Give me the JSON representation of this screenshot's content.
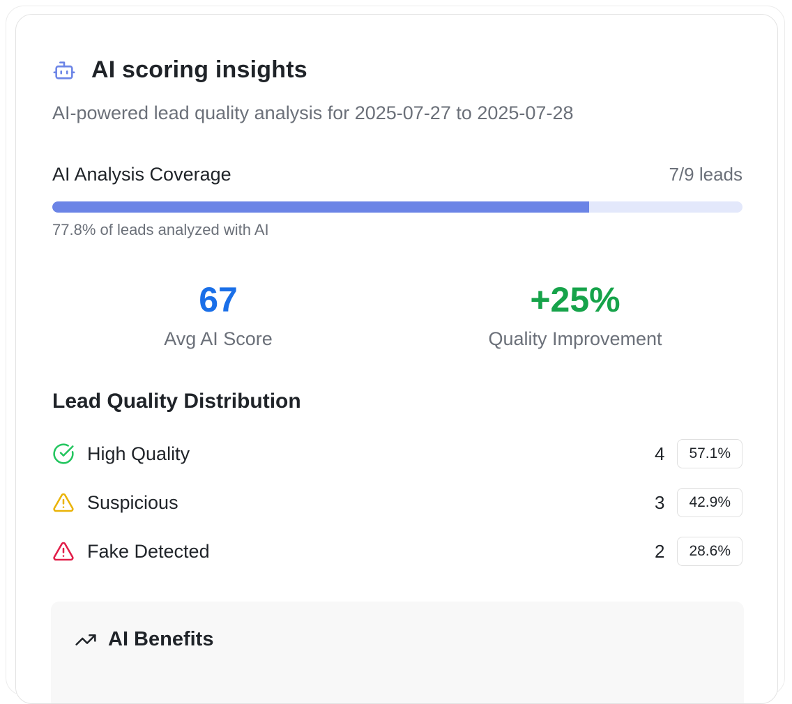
{
  "header": {
    "icon": "bot-icon",
    "title": "AI scoring insights",
    "subtitle": "AI-powered lead quality analysis for 2025-07-27 to 2025-07-28"
  },
  "coverage": {
    "label": "AI Analysis Coverage",
    "count": "7/9 leads",
    "progress_fraction": 0.778,
    "caption": "77.8% of leads analyzed with AI"
  },
  "stats": {
    "avg_score": {
      "value": "67",
      "label": "Avg AI Score",
      "color": "#1a6fe8"
    },
    "quality_improvement": {
      "value": "+25%",
      "label": "Quality Improvement",
      "color": "#16a34a"
    }
  },
  "distribution": {
    "title": "Lead Quality Distribution",
    "rows": [
      {
        "icon": "check-circle-icon",
        "label": "High Quality",
        "count": "4",
        "percent": "57.1%",
        "color": "#22c55e"
      },
      {
        "icon": "warning-triangle-icon",
        "label": "Suspicious",
        "count": "3",
        "percent": "42.9%",
        "color": "#eab308"
      },
      {
        "icon": "alert-triangle-icon",
        "label": "Fake Detected",
        "count": "2",
        "percent": "28.6%",
        "color": "#e11d48"
      }
    ]
  },
  "benefits": {
    "icon": "trending-up-icon",
    "title": "AI Benefits"
  },
  "colors": {
    "accent": "#6b84e6",
    "progress_track": "#e3e8fb"
  }
}
